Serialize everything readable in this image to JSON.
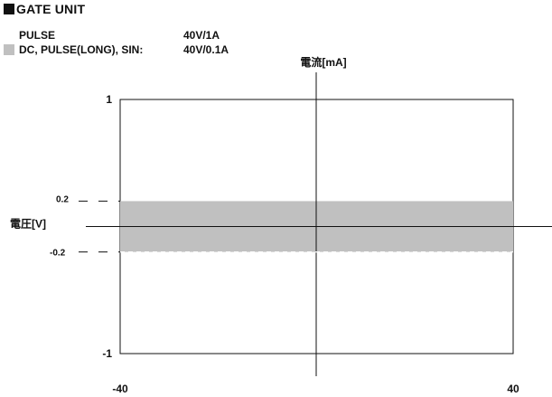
{
  "header": {
    "title": "GATE UNIT"
  },
  "legend": {
    "rows": [
      {
        "label": "PULSE",
        "value": "40V/1A"
      },
      {
        "label": "DC, PULSE(LONG), SIN:",
        "value": "40V/0.1A"
      }
    ],
    "band_color": "#c0c0c0"
  },
  "chart_data": {
    "type": "area",
    "xlabel": "電圧[V]",
    "ylabel": "電流[mA]",
    "xlim": [
      -40,
      40
    ],
    "ylim": [
      -1,
      1
    ],
    "x_ticks": [
      "-40",
      "40"
    ],
    "y_ticks": [
      "1",
      "-1"
    ],
    "band_ticks": [
      "0.2",
      "-0.2"
    ],
    "grid": false,
    "series": [
      {
        "x": [
          -40,
          40
        ],
        "y_upper": [
          0.2,
          0.2
        ],
        "y_lower": [
          -0.2,
          -0.2
        ]
      }
    ]
  }
}
